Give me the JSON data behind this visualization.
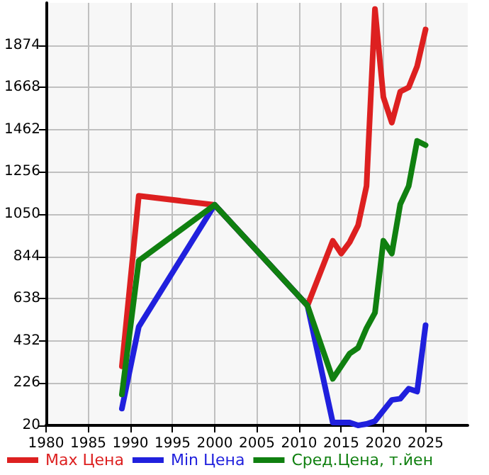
{
  "chart_data": {
    "type": "line",
    "xlim": [
      1980,
      2030
    ],
    "xticks": [
      1980,
      1985,
      1990,
      1995,
      2000,
      2005,
      2010,
      2015,
      2020,
      2025
    ],
    "ylim": [
      20,
      2080
    ],
    "yticks": [
      20,
      226,
      432,
      638,
      844,
      1050,
      1256,
      1462,
      1668,
      1874
    ],
    "grid": true,
    "legend": "bottom",
    "marker": "none",
    "line_style": "solid",
    "series": [
      {
        "name": "Max Цена",
        "color": "#dd2020",
        "x": [
          1989,
          1991,
          2000,
          2011,
          2014,
          2015,
          2016,
          2017,
          2018,
          2019,
          2020,
          2021,
          2022,
          2023,
          2024,
          2025
        ],
        "values": [
          308,
          1139,
          1095,
          604,
          920,
          858,
          913,
          995,
          1187,
          2050,
          1620,
          1496,
          1647,
          1668,
          1771,
          1950
        ]
      },
      {
        "name": "Min Цена",
        "color": "#2020dd",
        "x": [
          1989,
          1991,
          2000,
          2011,
          2014,
          2016,
          2017,
          2018,
          2019,
          2021,
          2022,
          2023,
          2024,
          2025
        ],
        "values": [
          102,
          501,
          1095,
          604,
          34,
          34,
          20,
          27,
          41,
          144,
          150,
          199,
          185,
          508
        ]
      },
      {
        "name": "Сред.Цена, т.йен",
        "color": "#108010",
        "x": [
          1989,
          1991,
          2000,
          2011,
          2014,
          2016,
          2017,
          2018,
          2019,
          2020,
          2021,
          2022,
          2023,
          2024,
          2025
        ],
        "values": [
          171,
          823,
          1095,
          604,
          247,
          370,
          398,
          494,
          569,
          920,
          858,
          1098,
          1187,
          1407,
          1386
        ]
      }
    ]
  }
}
